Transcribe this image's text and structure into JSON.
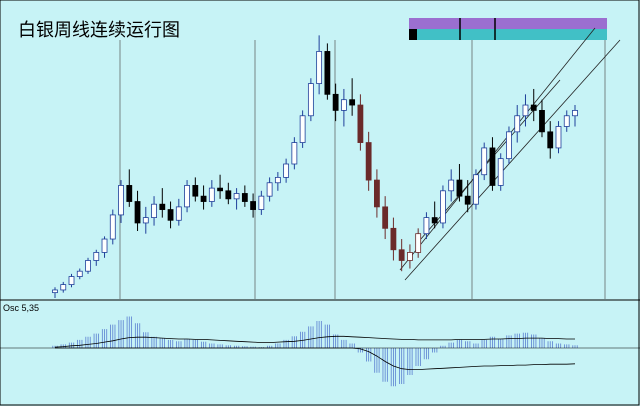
{
  "chart_data": [
    {
      "type": "candlestick",
      "title": "白银周线连续运行图",
      "indicator_label": "",
      "ylim": [
        0,
        100
      ],
      "grid": {
        "vertical": true
      },
      "colors": {
        "background": "#c7f3f6",
        "up": "#1f3f9a",
        "down": "#000000",
        "bear_zone": "#6b2a2a",
        "channel": "#222222",
        "panel_bar_top": "#9b6fd0",
        "panel_bar_bottom": "#41c0c6"
      },
      "series": [
        {
          "name": "ohlc",
          "values": [
            {
              "x": 1,
              "o": 2,
              "h": 4,
              "l": 0,
              "c": 3
            },
            {
              "x": 2,
              "o": 3,
              "h": 6,
              "l": 2,
              "c": 5
            },
            {
              "x": 3,
              "o": 5,
              "h": 9,
              "l": 4,
              "c": 8
            },
            {
              "x": 4,
              "o": 8,
              "h": 11,
              "l": 7,
              "c": 10
            },
            {
              "x": 5,
              "o": 10,
              "h": 15,
              "l": 9,
              "c": 14
            },
            {
              "x": 6,
              "o": 14,
              "h": 18,
              "l": 12,
              "c": 17
            },
            {
              "x": 7,
              "o": 17,
              "h": 23,
              "l": 15,
              "c": 22
            },
            {
              "x": 8,
              "o": 22,
              "h": 33,
              "l": 20,
              "c": 31
            },
            {
              "x": 9,
              "o": 31,
              "h": 44,
              "l": 28,
              "c": 42
            },
            {
              "x": 10,
              "o": 42,
              "h": 48,
              "l": 34,
              "c": 36
            },
            {
              "x": 11,
              "o": 36,
              "h": 40,
              "l": 25,
              "c": 28
            },
            {
              "x": 12,
              "o": 28,
              "h": 34,
              "l": 24,
              "c": 30
            },
            {
              "x": 13,
              "o": 30,
              "h": 38,
              "l": 27,
              "c": 35
            },
            {
              "x": 14,
              "o": 35,
              "h": 41,
              "l": 30,
              "c": 33
            },
            {
              "x": 15,
              "o": 33,
              "h": 36,
              "l": 26,
              "c": 29
            },
            {
              "x": 16,
              "o": 29,
              "h": 37,
              "l": 27,
              "c": 34
            },
            {
              "x": 17,
              "o": 34,
              "h": 44,
              "l": 32,
              "c": 42
            },
            {
              "x": 18,
              "o": 42,
              "h": 45,
              "l": 36,
              "c": 38
            },
            {
              "x": 19,
              "o": 38,
              "h": 42,
              "l": 33,
              "c": 36
            },
            {
              "x": 20,
              "o": 36,
              "h": 44,
              "l": 34,
              "c": 41
            },
            {
              "x": 21,
              "o": 41,
              "h": 46,
              "l": 37,
              "c": 40
            },
            {
              "x": 22,
              "o": 40,
              "h": 43,
              "l": 35,
              "c": 37
            },
            {
              "x": 23,
              "o": 37,
              "h": 41,
              "l": 33,
              "c": 39
            },
            {
              "x": 24,
              "o": 39,
              "h": 42,
              "l": 34,
              "c": 36
            },
            {
              "x": 25,
              "o": 36,
              "h": 39,
              "l": 30,
              "c": 33
            },
            {
              "x": 26,
              "o": 33,
              "h": 40,
              "l": 31,
              "c": 38
            },
            {
              "x": 27,
              "o": 38,
              "h": 45,
              "l": 36,
              "c": 43
            },
            {
              "x": 28,
              "o": 43,
              "h": 47,
              "l": 40,
              "c": 45
            },
            {
              "x": 29,
              "o": 45,
              "h": 52,
              "l": 43,
              "c": 50
            },
            {
              "x": 30,
              "o": 50,
              "h": 60,
              "l": 48,
              "c": 58
            },
            {
              "x": 31,
              "o": 58,
              "h": 70,
              "l": 56,
              "c": 68
            },
            {
              "x": 32,
              "o": 68,
              "h": 82,
              "l": 66,
              "c": 80
            },
            {
              "x": 33,
              "o": 80,
              "h": 98,
              "l": 76,
              "c": 92
            },
            {
              "x": 34,
              "o": 92,
              "h": 95,
              "l": 74,
              "c": 76
            },
            {
              "x": 35,
              "o": 76,
              "h": 80,
              "l": 66,
              "c": 70
            },
            {
              "x": 36,
              "o": 70,
              "h": 78,
              "l": 64,
              "c": 74
            },
            {
              "x": 37,
              "o": 74,
              "h": 82,
              "l": 68,
              "c": 72
            },
            {
              "x": 38,
              "o": 72,
              "h": 76,
              "l": 55,
              "c": 58
            },
            {
              "x": 39,
              "o": 58,
              "h": 62,
              "l": 40,
              "c": 44
            },
            {
              "x": 40,
              "o": 44,
              "h": 48,
              "l": 30,
              "c": 34
            },
            {
              "x": 41,
              "o": 34,
              "h": 38,
              "l": 22,
              "c": 26
            },
            {
              "x": 42,
              "o": 26,
              "h": 30,
              "l": 14,
              "c": 18
            },
            {
              "x": 43,
              "o": 18,
              "h": 22,
              "l": 10,
              "c": 14
            },
            {
              "x": 44,
              "o": 14,
              "h": 20,
              "l": 11,
              "c": 17
            },
            {
              "x": 45,
              "o": 17,
              "h": 26,
              "l": 15,
              "c": 24
            },
            {
              "x": 46,
              "o": 24,
              "h": 32,
              "l": 22,
              "c": 30
            },
            {
              "x": 47,
              "o": 30,
              "h": 36,
              "l": 26,
              "c": 28
            },
            {
              "x": 48,
              "o": 28,
              "h": 42,
              "l": 26,
              "c": 40
            },
            {
              "x": 49,
              "o": 40,
              "h": 48,
              "l": 36,
              "c": 44
            },
            {
              "x": 50,
              "o": 44,
              "h": 50,
              "l": 36,
              "c": 38
            },
            {
              "x": 51,
              "o": 38,
              "h": 44,
              "l": 32,
              "c": 35
            },
            {
              "x": 52,
              "o": 35,
              "h": 48,
              "l": 33,
              "c": 46
            },
            {
              "x": 53,
              "o": 46,
              "h": 58,
              "l": 44,
              "c": 56
            },
            {
              "x": 54,
              "o": 56,
              "h": 60,
              "l": 40,
              "c": 42
            },
            {
              "x": 55,
              "o": 42,
              "h": 54,
              "l": 40,
              "c": 52
            },
            {
              "x": 56,
              "o": 52,
              "h": 64,
              "l": 50,
              "c": 62
            },
            {
              "x": 57,
              "o": 62,
              "h": 72,
              "l": 58,
              "c": 68
            },
            {
              "x": 58,
              "o": 68,
              "h": 76,
              "l": 64,
              "c": 72
            },
            {
              "x": 59,
              "o": 72,
              "h": 78,
              "l": 66,
              "c": 70
            },
            {
              "x": 60,
              "o": 70,
              "h": 74,
              "l": 60,
              "c": 62
            },
            {
              "x": 61,
              "o": 62,
              "h": 66,
              "l": 52,
              "c": 56
            },
            {
              "x": 62,
              "o": 56,
              "h": 66,
              "l": 54,
              "c": 64
            },
            {
              "x": 63,
              "o": 64,
              "h": 70,
              "l": 62,
              "c": 68
            },
            {
              "x": 64,
              "o": 68,
              "h": 72,
              "l": 64,
              "c": 70
            }
          ]
        }
      ]
    },
    {
      "type": "bar",
      "indicator_label": "Osc 5,35",
      "ylim": [
        -1,
        1
      ],
      "series": [
        {
          "name": "osc",
          "values": [
            0.05,
            0.08,
            0.12,
            0.18,
            0.25,
            0.32,
            0.42,
            0.52,
            0.62,
            0.7,
            0.55,
            0.35,
            0.25,
            0.22,
            0.18,
            0.15,
            0.2,
            0.18,
            0.14,
            0.1,
            0.08,
            0.06,
            0.05,
            0.04,
            0.03,
            0.02,
            0.05,
            0.1,
            0.18,
            0.26,
            0.36,
            0.48,
            0.6,
            0.52,
            0.3,
            0.18,
            0.1,
            -0.1,
            -0.3,
            -0.55,
            -0.75,
            -0.85,
            -0.8,
            -0.6,
            -0.4,
            -0.25,
            -0.1,
            0.05,
            0.12,
            0.18,
            0.15,
            0.1,
            0.18,
            0.25,
            0.2,
            0.28,
            0.32,
            0.34,
            0.3,
            0.22,
            0.15,
            0.1,
            0.08,
            0.06
          ]
        },
        {
          "name": "osc_signal_upper",
          "values": [
            0.02,
            0.03,
            0.05,
            0.06,
            0.08,
            0.1,
            0.13,
            0.16,
            0.2,
            0.23,
            0.24,
            0.24,
            0.23,
            0.22,
            0.21,
            0.2,
            0.2,
            0.19,
            0.19,
            0.18,
            0.17,
            0.16,
            0.15,
            0.14,
            0.13,
            0.12,
            0.12,
            0.13,
            0.14,
            0.15,
            0.17,
            0.2,
            0.23,
            0.25,
            0.26,
            0.26,
            0.25,
            0.24,
            0.23,
            0.22,
            0.21,
            0.2,
            0.19,
            0.19,
            0.18,
            0.18,
            0.18,
            0.18,
            0.18,
            0.19,
            0.19,
            0.19,
            0.19,
            0.2,
            0.2,
            0.21,
            0.21,
            0.22,
            0.22,
            0.22,
            0.21,
            0.21,
            0.2,
            0.2
          ]
        },
        {
          "name": "osc_signal_lower",
          "values": [
            0,
            0,
            0,
            0,
            0,
            0,
            0,
            0,
            0,
            0,
            0,
            0,
            0,
            0,
            0,
            0,
            0,
            0,
            0,
            0,
            0,
            0,
            0,
            0,
            0,
            0,
            0,
            0,
            0,
            0,
            0,
            0,
            0,
            0,
            0,
            0,
            0,
            -0.02,
            -0.08,
            -0.18,
            -0.3,
            -0.4,
            -0.46,
            -0.48,
            -0.48,
            -0.47,
            -0.46,
            -0.45,
            -0.44,
            -0.43,
            -0.42,
            -0.41,
            -0.4,
            -0.4,
            -0.39,
            -0.39,
            -0.38,
            -0.38,
            -0.37,
            -0.37,
            -0.36,
            -0.36,
            -0.36,
            -0.35
          ]
        }
      ]
    }
  ]
}
